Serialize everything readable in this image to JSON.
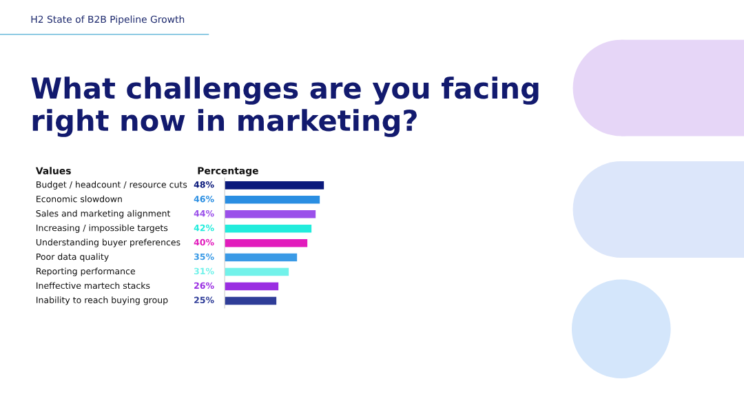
{
  "chart_data": {
    "type": "bar",
    "orientation": "horizontal",
    "subtitle": "H2 State of B2B Pipeline Growth",
    "title": "What challenges are you facing\nright now in marketing?",
    "ylabel": "Values",
    "xlabel": "Percentage",
    "categories": [
      "Budget / headcount / resource cuts",
      "Economic slowdown",
      "Sales and marketing alignment",
      "Increasing / impossible targets",
      "Understanding buyer preferences",
      "Poor data quality",
      "Reporting performance",
      "Ineffective martech stacks",
      "Inability to reach buying group"
    ],
    "values": [
      48,
      46,
      44,
      42,
      40,
      35,
      31,
      26,
      25
    ],
    "colors": [
      "#0b1a7c",
      "#2a8ee2",
      "#9b50ea",
      "#22ecdc",
      "#e21cbc",
      "#3a9ae6",
      "#72f2ea",
      "#9a2ee2",
      "#2f3d98"
    ],
    "value_labels": [
      "48%",
      "46%",
      "44%",
      "42%",
      "40%",
      "35%",
      "31%",
      "26%",
      "25%"
    ],
    "legend": false,
    "tick_labels": false
  }
}
